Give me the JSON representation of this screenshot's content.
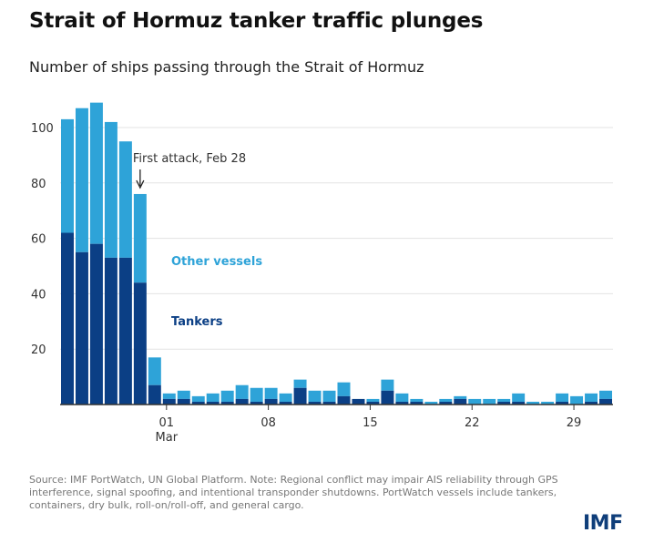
{
  "title": "Strait of Hormuz tanker traffic plunges",
  "subtitle": "Number of ships passing through the Strait of Hormuz",
  "source": "Source: IMF PortWatch, UN Global Platform. Note: Regional conflict may impair AIS reliability through GPS interference, signal spoofing, and intentional transponder shutdowns. PortWatch vessels include tankers, containers, dry bulk, roll-on/roll-off, and general cargo.",
  "logo": "IMF",
  "colors": {
    "tankers": "#0b3f85",
    "other": "#2ea3d8",
    "grid": "#e3e3e3",
    "axis": "#333333"
  },
  "chart_data": {
    "type": "bar",
    "stacked": true,
    "x_ticks": [
      {
        "label": "01",
        "sublabel": "Mar",
        "index": 7
      },
      {
        "label": "08",
        "sublabel": "",
        "index": 14
      },
      {
        "label": "15",
        "sublabel": "",
        "index": 21
      },
      {
        "label": "22",
        "sublabel": "",
        "index": 28
      },
      {
        "label": "29",
        "sublabel": "",
        "index": 35
      }
    ],
    "y_ticks": [
      20,
      40,
      60,
      80,
      100
    ],
    "ylim": [
      0,
      110
    ],
    "series": [
      {
        "name": "Tankers",
        "values": [
          62,
          55,
          58,
          53,
          53,
          44,
          7,
          2,
          2,
          1,
          1,
          1,
          2,
          1,
          2,
          1,
          6,
          1,
          1,
          3,
          2,
          1,
          5,
          1,
          1,
          0,
          1,
          2,
          0,
          0,
          1,
          1,
          0,
          0,
          1,
          0,
          1,
          2
        ]
      },
      {
        "name": "Other vessels",
        "values": [
          41,
          52,
          51,
          49,
          42,
          32,
          10,
          2,
          3,
          2,
          3,
          4,
          5,
          5,
          4,
          3,
          3,
          4,
          4,
          5,
          0,
          1,
          4,
          3,
          1,
          1,
          1,
          1,
          2,
          2,
          1,
          3,
          1,
          1,
          3,
          3,
          3,
          3
        ]
      }
    ],
    "annotations": [
      {
        "text": "First attack, Feb 28",
        "index": 5
      },
      {
        "text": "Other vessels",
        "series": "Other vessels"
      },
      {
        "text": "Tankers",
        "series": "Tankers"
      }
    ]
  }
}
